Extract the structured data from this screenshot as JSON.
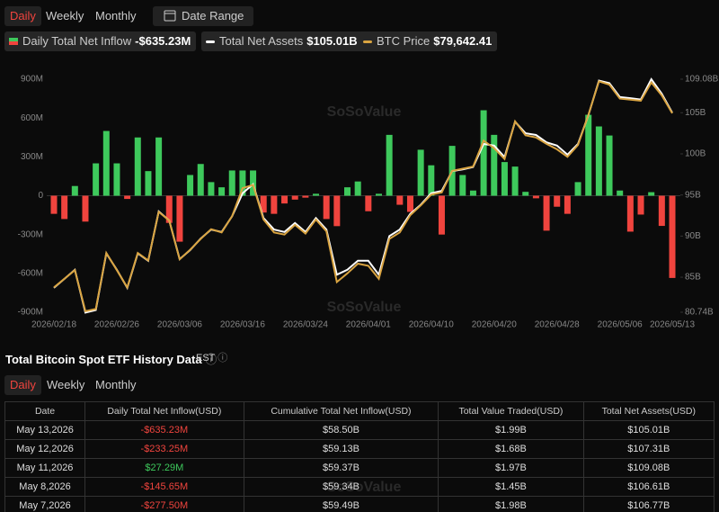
{
  "tabs": {
    "items": [
      "Daily",
      "Weekly",
      "Monthly"
    ],
    "selected": 0,
    "date_range": "Date Range"
  },
  "chart_data": {
    "type": "bar-line",
    "watermark": "SoSoValue",
    "categories": [
      "2026/02/18",
      null,
      null,
      null,
      null,
      null,
      "2026/02/26",
      null,
      null,
      null,
      null,
      null,
      "2026/03/06",
      null,
      null,
      null,
      null,
      null,
      "2026/03/16",
      null,
      null,
      null,
      null,
      null,
      "2026/03/24",
      null,
      null,
      null,
      null,
      null,
      "2026/04/01",
      null,
      null,
      null,
      null,
      null,
      "2026/04/10",
      null,
      null,
      null,
      null,
      null,
      "2026/04/20",
      null,
      null,
      null,
      null,
      null,
      "2026/04/28",
      null,
      null,
      null,
      null,
      null,
      "2026/05/06",
      null,
      null,
      null,
      null,
      "2026/05/13"
    ],
    "series": [
      {
        "name": "Daily Total Net Inflow",
        "type": "bar",
        "colors": {
          "positive": "#3ec95c",
          "negative": "#f0443e"
        },
        "latest_label": "-$635.23M",
        "values": [
          -140,
          -180,
          75,
          -200,
          250,
          500,
          250,
          -25,
          450,
          190,
          450,
          -210,
          -355,
          160,
          245,
          105,
          65,
          195,
          195,
          195,
          -130,
          -140,
          -60,
          -30,
          -15,
          15,
          -180,
          -235,
          65,
          110,
          -120,
          15,
          470,
          -70,
          -125,
          355,
          235,
          -300,
          385,
          160,
          40,
          660,
          470,
          260,
          225,
          30,
          -20,
          -270,
          -85,
          -140,
          105,
          625,
          535,
          465,
          40,
          -277.5,
          -145.65,
          27.29,
          -233.25,
          -635.23
        ]
      },
      {
        "name": "Total Net Assets",
        "type": "line",
        "axis": "y2",
        "color": "#ffffff",
        "latest_label": "$105.01B",
        "values": [
          83.7,
          84.8,
          85.9,
          80.7,
          81.0,
          87.9,
          85.9,
          83.7,
          87.9,
          87.0,
          93.0,
          91.9,
          87.2,
          88.3,
          89.7,
          90.8,
          90.5,
          92.4,
          95.2,
          96.3,
          92.2,
          90.8,
          90.5,
          91.6,
          90.5,
          92.2,
          90.8,
          85.3,
          85.9,
          87.0,
          87.0,
          85.3,
          90.0,
          90.8,
          92.7,
          93.8,
          95.2,
          95.5,
          97.9,
          98.1,
          98.4,
          101.2,
          101.0,
          99.6,
          103.9,
          102.5,
          102.3,
          101.4,
          101.0,
          99.9,
          101.2,
          104.7,
          108.9,
          108.6,
          106.9,
          106.77,
          106.61,
          109.08,
          107.31,
          105.01
        ]
      },
      {
        "name": "BTC Price",
        "type": "line",
        "axis": "y3",
        "color": "#d9a441",
        "latest_label": "$79,642.41",
        "values": [
          63500,
          64300,
          65100,
          61300,
          61500,
          66700,
          65100,
          63500,
          66700,
          66000,
          70500,
          69700,
          66100,
          67000,
          68000,
          68900,
          68600,
          70100,
          72700,
          73000,
          69800,
          68600,
          68400,
          69300,
          68500,
          69800,
          68700,
          64000,
          64800,
          65700,
          65500,
          64300,
          68000,
          68600,
          70200,
          71100,
          72100,
          72300,
          74300,
          74500,
          74700,
          77100,
          76400,
          75400,
          78900,
          77600,
          77400,
          76800,
          76300,
          75600,
          76700,
          79500,
          82600,
          82300,
          81000,
          80900,
          80800,
          82500,
          81300,
          79642.41
        ]
      }
    ],
    "ylim": [
      -900,
      900
    ],
    "yticks": [
      {
        "value": -900,
        "label": "-900M"
      },
      {
        "value": -600,
        "label": "-600M"
      },
      {
        "value": -300,
        "label": "-300M"
      },
      0,
      {
        "value": 300,
        "label": "300M"
      },
      {
        "value": 600,
        "label": "600M"
      },
      {
        "value": 900,
        "label": "900M"
      }
    ],
    "y2lim": [
      80.74,
      109.08
    ],
    "y2ticks": [
      {
        "value": 80.74,
        "label": "80.74B"
      },
      {
        "value": 85,
        "label": "85B"
      },
      {
        "value": 90,
        "label": "90B"
      },
      {
        "value": 95,
        "label": "95B"
      },
      {
        "value": 100,
        "label": "100B"
      },
      {
        "value": 105,
        "label": "105B"
      },
      {
        "value": 109.08,
        "label": "109.08B"
      }
    ],
    "y3lim": [
      61200,
      82800
    ]
  },
  "table_section": {
    "title": "Total Bitcoin Spot ETF History Data",
    "timezone": "EST",
    "tabs": [
      "Daily",
      "Weekly",
      "Monthly"
    ],
    "selected": 0,
    "columns": [
      "Date",
      "Daily Total Net Inflow(USD)",
      "Cumulative Total Net Inflow(USD)",
      "Total Value Traded(USD)",
      "Total Net Assets(USD)"
    ],
    "rows": [
      [
        "May 13,2026",
        "-$635.23M",
        "$58.50B",
        "$1.99B",
        "$105.01B"
      ],
      [
        "May 12,2026",
        "-$233.25M",
        "$59.13B",
        "$1.68B",
        "$107.31B"
      ],
      [
        "May 11,2026",
        "$27.29M",
        "$59.37B",
        "$1.97B",
        "$109.08B"
      ],
      [
        "May 8,2026",
        "-$145.65M",
        "$59.34B",
        "$1.45B",
        "$106.61B"
      ],
      [
        "May 7,2026",
        "-$277.50M",
        "$59.49B",
        "$1.98B",
        "$106.77B"
      ]
    ]
  }
}
